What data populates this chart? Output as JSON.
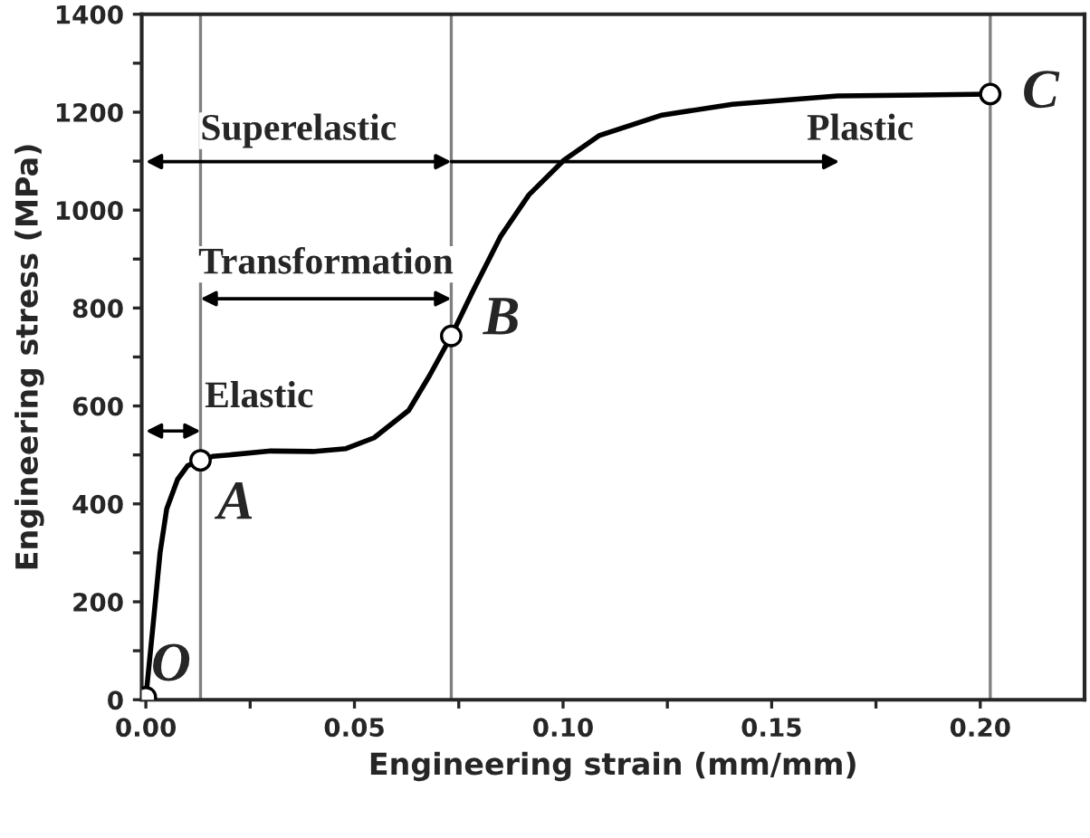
{
  "chart_data": {
    "type": "line",
    "xlabel": "Engineering strain (mm/mm)",
    "ylabel": "Engineering stress (MPa)",
    "xlim": [
      -0.001,
      0.225
    ],
    "ylim": [
      0,
      1400
    ],
    "xticks": [
      {
        "value": 0,
        "label": "0.00"
      },
      {
        "value": 0.025,
        "label": null
      },
      {
        "value": 0.05,
        "label": "0.05"
      },
      {
        "value": 0.075,
        "label": null
      },
      {
        "value": 0.1,
        "label": "0.10"
      },
      {
        "value": 0.125,
        "label": null
      },
      {
        "value": 0.15,
        "label": "0.15"
      },
      {
        "value": 0.175,
        "label": null
      },
      {
        "value": 0.2,
        "label": "0.20"
      }
    ],
    "yticks": [
      0,
      {
        "value": 100,
        "label": null
      },
      200,
      {
        "value": 300,
        "label": null
      },
      400,
      {
        "value": 500,
        "label": null
      },
      600,
      {
        "value": 700,
        "label": null
      },
      800,
      {
        "value": 900,
        "label": null
      },
      1000,
      {
        "value": 1100,
        "label": null
      },
      1200,
      {
        "value": 1300,
        "label": null
      },
      1400
    ],
    "grid": false,
    "legend": false,
    "series": [
      {
        "color": "#000000",
        "line_style": "solid",
        "x": [
          0,
          0.0017,
          0.0034,
          0.005,
          0.0076,
          0.01,
          0.0131,
          0.016,
          0.02,
          0.03,
          0.04,
          0.048,
          0.0547,
          0.063,
          0.068,
          0.0732,
          0.0783,
          0.085,
          0.0918,
          0.1002,
          0.1086,
          0.1237,
          0.1406,
          0.1658,
          0.2024
        ],
        "values": [
          5,
          150,
          300,
          390,
          450,
          478,
          489,
          497,
          500,
          508,
          507,
          513,
          535,
          591,
          662,
          743,
          833,
          946,
          1031,
          1102,
          1152,
          1194,
          1216,
          1233,
          1237
        ]
      },
      {
        "type": "scatter",
        "color": "#000000",
        "marker": "circle",
        "x": [
          0,
          0.0131,
          0.0732,
          0.2024
        ],
        "values": [
          5,
          489,
          743,
          1237
        ]
      }
    ],
    "ref_lines": [
      {
        "axis": "x",
        "value": 0.0131,
        "color": "#808080"
      },
      {
        "axis": "x",
        "value": 0.0732,
        "color": "#808080"
      },
      {
        "axis": "x",
        "value": 0.2024,
        "color": "#808080"
      }
    ],
    "annotations": [
      "Superelastic",
      "Plastic",
      "Transformation",
      "Elastic",
      "O",
      "A",
      "B",
      "C"
    ]
  }
}
